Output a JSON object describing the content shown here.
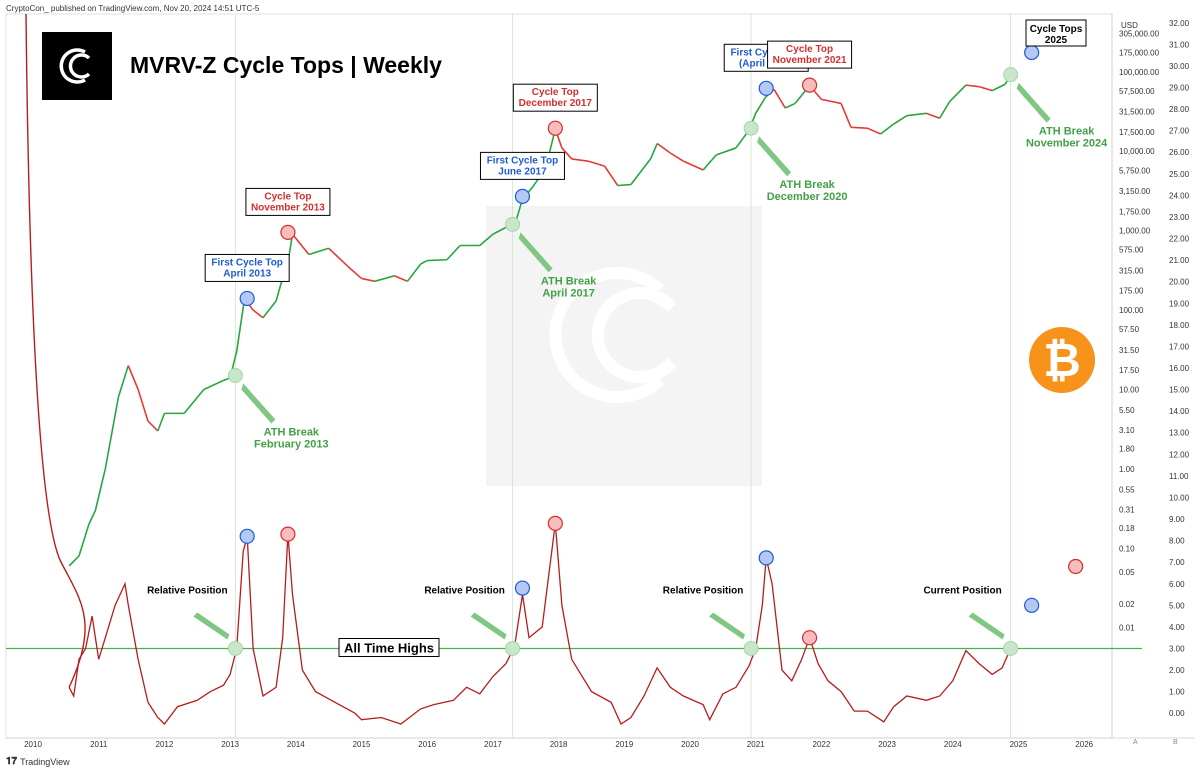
{
  "header": {
    "published_text": "CryptoCon_ published on TradingView.com, Nov 20, 2024 14:51 UTC-5",
    "title": "MVRV-Z Cycle Tops | Weekly",
    "currency": "USD",
    "footer_brand": "TradingView",
    "axis_button_a": "A",
    "axis_button_b": "B"
  },
  "colors": {
    "price_up": "#26a641",
    "price_down": "#e53935",
    "mvrv_line": "#b71c1c",
    "ath_line": "#4caf50",
    "first_top": "#1e5bd6",
    "cycle_top": "#d32f2f",
    "ath_label": "#43a047",
    "bitcoin": "#f7931a"
  },
  "chart_data": {
    "type": "line",
    "x_ticks": [
      "2010",
      "2011",
      "2012",
      "2013",
      "2014",
      "2015",
      "2016",
      "2017",
      "2018",
      "2019",
      "2020",
      "2021",
      "2022",
      "2023",
      "2024",
      "2025",
      "2026"
    ],
    "price_axis_labels": [
      "305,000.00",
      "175,000.00",
      "100,000.00",
      "57,500.00",
      "31,500.00",
      "17,500.00",
      "10,000.00",
      "5,750.00",
      "3,150.00",
      "1,750.00",
      "1,000.00",
      "575.00",
      "315.00",
      "175.00",
      "100.00",
      "57.50",
      "31.50",
      "17.50",
      "10.00",
      "5.50",
      "3.10",
      "1.80",
      "1.00",
      "0.55",
      "0.31",
      "0.18",
      "0.10",
      "0.05",
      "0.02",
      "0.01"
    ],
    "price_axis_unit": "USD",
    "z_axis_labels": [
      "32.00",
      "31.00",
      "30.00",
      "29.00",
      "28.00",
      "27.00",
      "26.00",
      "25.00",
      "24.00",
      "23.00",
      "22.00",
      "21.00",
      "20.00",
      "19.00",
      "18.00",
      "17.00",
      "16.00",
      "15.00",
      "14.00",
      "13.00",
      "12.00",
      "11.00",
      "10.00",
      "9.00",
      "8.00",
      "7.00",
      "6.00",
      "5.00",
      "4.00",
      "3.00",
      "2.00",
      "1.00",
      "0.00"
    ],
    "z_range": [
      -0.5,
      32.5
    ],
    "price_log_range_usd": [
      0.007,
      400000
    ],
    "series": [
      {
        "type": "candlestick-line",
        "points": [
          [
            2010.55,
            0.06
          ],
          [
            2010.7,
            0.08
          ],
          [
            2010.85,
            0.2
          ],
          [
            2010.95,
            0.3
          ],
          [
            2011.1,
            1.0
          ],
          [
            2011.3,
            8
          ],
          [
            2011.45,
            20
          ],
          [
            2011.6,
            10
          ],
          [
            2011.75,
            4
          ],
          [
            2011.9,
            3
          ],
          [
            2012.0,
            5
          ],
          [
            2012.3,
            5
          ],
          [
            2012.6,
            10
          ],
          [
            2012.9,
            13
          ],
          [
            2013.0,
            14
          ],
          [
            2013.1,
            30
          ],
          [
            2013.22,
            140
          ],
          [
            2013.35,
            100
          ],
          [
            2013.5,
            80
          ],
          [
            2013.7,
            130
          ],
          [
            2013.9,
            500
          ],
          [
            2013.95,
            900
          ],
          [
            2014.0,
            800
          ],
          [
            2014.2,
            500
          ],
          [
            2014.5,
            600
          ],
          [
            2014.8,
            350
          ],
          [
            2015.0,
            250
          ],
          [
            2015.2,
            230
          ],
          [
            2015.5,
            270
          ],
          [
            2015.7,
            230
          ],
          [
            2015.9,
            380
          ],
          [
            2016.0,
            420
          ],
          [
            2016.3,
            430
          ],
          [
            2016.5,
            650
          ],
          [
            2016.8,
            650
          ],
          [
            2017.0,
            900
          ],
          [
            2017.2,
            1100
          ],
          [
            2017.35,
            1300
          ],
          [
            2017.45,
            2500
          ],
          [
            2017.6,
            3500
          ],
          [
            2017.8,
            6000
          ],
          [
            2017.95,
            19000
          ],
          [
            2018.05,
            11000
          ],
          [
            2018.2,
            8000
          ],
          [
            2018.45,
            7500
          ],
          [
            2018.7,
            6500
          ],
          [
            2018.9,
            3700
          ],
          [
            2019.1,
            3800
          ],
          [
            2019.4,
            8000
          ],
          [
            2019.5,
            12500
          ],
          [
            2019.7,
            9500
          ],
          [
            2019.9,
            7500
          ],
          [
            2020.2,
            5800
          ],
          [
            2020.4,
            9000
          ],
          [
            2020.7,
            11000
          ],
          [
            2020.9,
            18500
          ],
          [
            2021.0,
            30000
          ],
          [
            2021.15,
            48000
          ],
          [
            2021.28,
            60000
          ],
          [
            2021.45,
            35000
          ],
          [
            2021.6,
            40000
          ],
          [
            2021.82,
            67000
          ],
          [
            2022.0,
            45000
          ],
          [
            2022.3,
            40000
          ],
          [
            2022.45,
            20000
          ],
          [
            2022.7,
            19500
          ],
          [
            2022.9,
            16500
          ],
          [
            2023.1,
            22000
          ],
          [
            2023.3,
            28000
          ],
          [
            2023.6,
            30000
          ],
          [
            2023.8,
            26000
          ],
          [
            2023.95,
            42000
          ],
          [
            2024.2,
            68000
          ],
          [
            2024.4,
            65000
          ],
          [
            2024.6,
            58000
          ],
          [
            2024.8,
            70000
          ],
          [
            2024.88,
            93000
          ]
        ]
      },
      {
        "type": "line",
        "name": "MVRV-Z",
        "points": [
          [
            2010.55,
            1.2
          ],
          [
            2010.62,
            0.8
          ],
          [
            2010.7,
            2.5
          ],
          [
            2010.8,
            3.0
          ],
          [
            2010.9,
            4.5
          ],
          [
            2011.0,
            2.5
          ],
          [
            2011.1,
            3.5
          ],
          [
            2011.25,
            5.0
          ],
          [
            2011.4,
            6.0
          ],
          [
            2011.45,
            5.0
          ],
          [
            2011.6,
            2.5
          ],
          [
            2011.75,
            0.5
          ],
          [
            2011.9,
            -0.2
          ],
          [
            2012.0,
            -0.5
          ],
          [
            2012.2,
            0.3
          ],
          [
            2012.5,
            0.6
          ],
          [
            2012.7,
            1.0
          ],
          [
            2012.9,
            1.3
          ],
          [
            2013.0,
            1.8
          ],
          [
            2013.1,
            3.0
          ],
          [
            2013.2,
            7.5
          ],
          [
            2013.26,
            8.2
          ],
          [
            2013.35,
            3.0
          ],
          [
            2013.5,
            0.8
          ],
          [
            2013.7,
            1.2
          ],
          [
            2013.8,
            3.5
          ],
          [
            2013.88,
            8.3
          ],
          [
            2013.95,
            5.5
          ],
          [
            2014.1,
            2.0
          ],
          [
            2014.3,
            1.0
          ],
          [
            2014.6,
            0.5
          ],
          [
            2014.9,
            0.0
          ],
          [
            2015.0,
            -0.3
          ],
          [
            2015.3,
            -0.2
          ],
          [
            2015.6,
            -0.5
          ],
          [
            2015.9,
            0.2
          ],
          [
            2016.1,
            0.4
          ],
          [
            2016.4,
            0.6
          ],
          [
            2016.6,
            1.2
          ],
          [
            2016.8,
            0.9
          ],
          [
            2017.0,
            1.7
          ],
          [
            2017.2,
            2.3
          ],
          [
            2017.33,
            3.1
          ],
          [
            2017.45,
            5.5
          ],
          [
            2017.55,
            3.5
          ],
          [
            2017.75,
            4.0
          ],
          [
            2017.95,
            8.8
          ],
          [
            2018.05,
            5.0
          ],
          [
            2018.2,
            2.5
          ],
          [
            2018.5,
            1.0
          ],
          [
            2018.8,
            0.5
          ],
          [
            2018.95,
            -0.5
          ],
          [
            2019.1,
            -0.2
          ],
          [
            2019.3,
            0.8
          ],
          [
            2019.5,
            2.1
          ],
          [
            2019.7,
            1.2
          ],
          [
            2019.9,
            0.8
          ],
          [
            2020.2,
            0.4
          ],
          [
            2020.3,
            -0.3
          ],
          [
            2020.5,
            0.9
          ],
          [
            2020.7,
            1.2
          ],
          [
            2020.9,
            2.2
          ],
          [
            2021.0,
            3.0
          ],
          [
            2021.1,
            5.0
          ],
          [
            2021.16,
            7.2
          ],
          [
            2021.25,
            6.0
          ],
          [
            2021.4,
            2.0
          ],
          [
            2021.55,
            1.5
          ],
          [
            2021.7,
            2.5
          ],
          [
            2021.82,
            3.5
          ],
          [
            2021.95,
            2.3
          ],
          [
            2022.1,
            1.5
          ],
          [
            2022.3,
            1.0
          ],
          [
            2022.5,
            0.1
          ],
          [
            2022.7,
            0.1
          ],
          [
            2022.95,
            -0.4
          ],
          [
            2023.1,
            0.3
          ],
          [
            2023.3,
            0.8
          ],
          [
            2023.6,
            0.6
          ],
          [
            2023.8,
            0.8
          ],
          [
            2024.0,
            1.5
          ],
          [
            2024.2,
            2.9
          ],
          [
            2024.4,
            2.3
          ],
          [
            2024.6,
            1.8
          ],
          [
            2024.75,
            2.1
          ],
          [
            2024.88,
            3.0
          ]
        ]
      }
    ],
    "ath_line_z": 3.0,
    "ath_line_label": "All Time Highs",
    "vertical_markers_year": [
      2013.08,
      2017.3,
      2020.93,
      2024.88
    ],
    "annotations": [
      {
        "kind": "first_cycle_top",
        "text": "First Cycle Top\nApril 2013",
        "x": 2013.26,
        "price": 140,
        "z": 8.2
      },
      {
        "kind": "cycle_top",
        "text": "Cycle Top\nNovember 2013",
        "x": 2013.88,
        "price": 950,
        "z": 8.3
      },
      {
        "kind": "first_cycle_top",
        "text": "First Cycle Top\nJune 2017",
        "x": 2017.45,
        "price": 2700,
        "z": 5.8
      },
      {
        "kind": "cycle_top",
        "text": "Cycle Top\nDecember 2017",
        "x": 2017.95,
        "price": 19500,
        "z": 8.8
      },
      {
        "kind": "first_cycle_top",
        "text": "First Cycle Top\n(April 2021)",
        "x": 2021.16,
        "price": 62000,
        "z": 7.2
      },
      {
        "kind": "cycle_top",
        "text": "Cycle Top\nNovember 2021",
        "x": 2021.82,
        "price": 68000,
        "z": 3.5
      },
      {
        "kind": "projected_first",
        "x": 2025.2,
        "price": 175000,
        "z": 5.0
      },
      {
        "kind": "projected_top",
        "x": 2025.87,
        "price": 295000,
        "z": 6.8
      },
      {
        "kind": "ath_break",
        "text": "ATH Break\nFebruary 2013",
        "x": 2013.08,
        "price": 15
      },
      {
        "kind": "ath_break",
        "text": "ATH Break\nApril 2017",
        "x": 2017.3,
        "price": 1200
      },
      {
        "kind": "ath_break",
        "text": "ATH Break\nDecember 2020",
        "x": 2020.93,
        "price": 19500
      },
      {
        "kind": "ath_break",
        "text": "ATH Break\nNovember 2024",
        "x": 2024.88,
        "price": 92000
      },
      {
        "kind": "relative_position",
        "text": "Relative Position",
        "x": 2013.08
      },
      {
        "kind": "relative_position",
        "text": "Relative Position",
        "x": 2017.3
      },
      {
        "kind": "relative_position",
        "text": "Relative Position",
        "x": 2020.93
      },
      {
        "kind": "relative_position",
        "text": "Current Position",
        "x": 2024.88
      }
    ],
    "projection_box_text": "Cycle Tops\n2025"
  }
}
